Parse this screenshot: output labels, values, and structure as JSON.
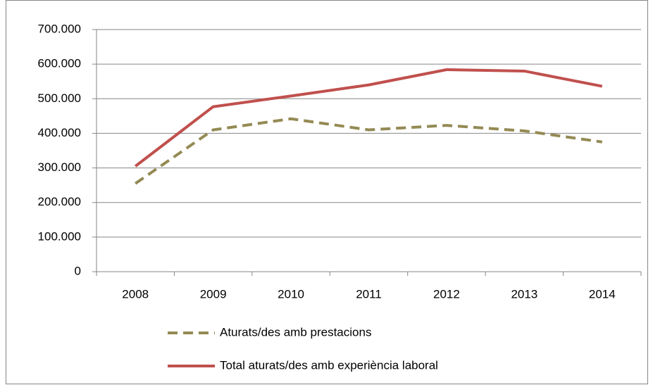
{
  "chart_data": {
    "type": "line",
    "categories": [
      "2008",
      "2009",
      "2010",
      "2011",
      "2012",
      "2013",
      "2014"
    ],
    "series": [
      {
        "name": "Aturats/des amb prestacions",
        "color": "#948a54",
        "dash": true,
        "values": [
          255000,
          410000,
          442000,
          410000,
          423000,
          407000,
          375000
        ]
      },
      {
        "name": "Total aturats/des amb experiència laboral",
        "color": "#c0504d",
        "dash": false,
        "values": [
          305000,
          477000,
          508000,
          540000,
          584000,
          580000,
          536000
        ]
      }
    ],
    "ylim": [
      0,
      700000
    ],
    "yticks": [
      0,
      {
        "value": 100000,
        "label": "100.000"
      },
      {
        "value": 200000,
        "label": "200.000"
      },
      {
        "value": 300000,
        "label": "300.000"
      },
      {
        "value": 400000,
        "label": "400.000"
      },
      {
        "value": 500000,
        "label": "500.000"
      },
      {
        "value": 600000,
        "label": "600.000"
      },
      {
        "value": 700000,
        "label": "700.000"
      }
    ],
    "grid": true,
    "legend": "bottom"
  }
}
